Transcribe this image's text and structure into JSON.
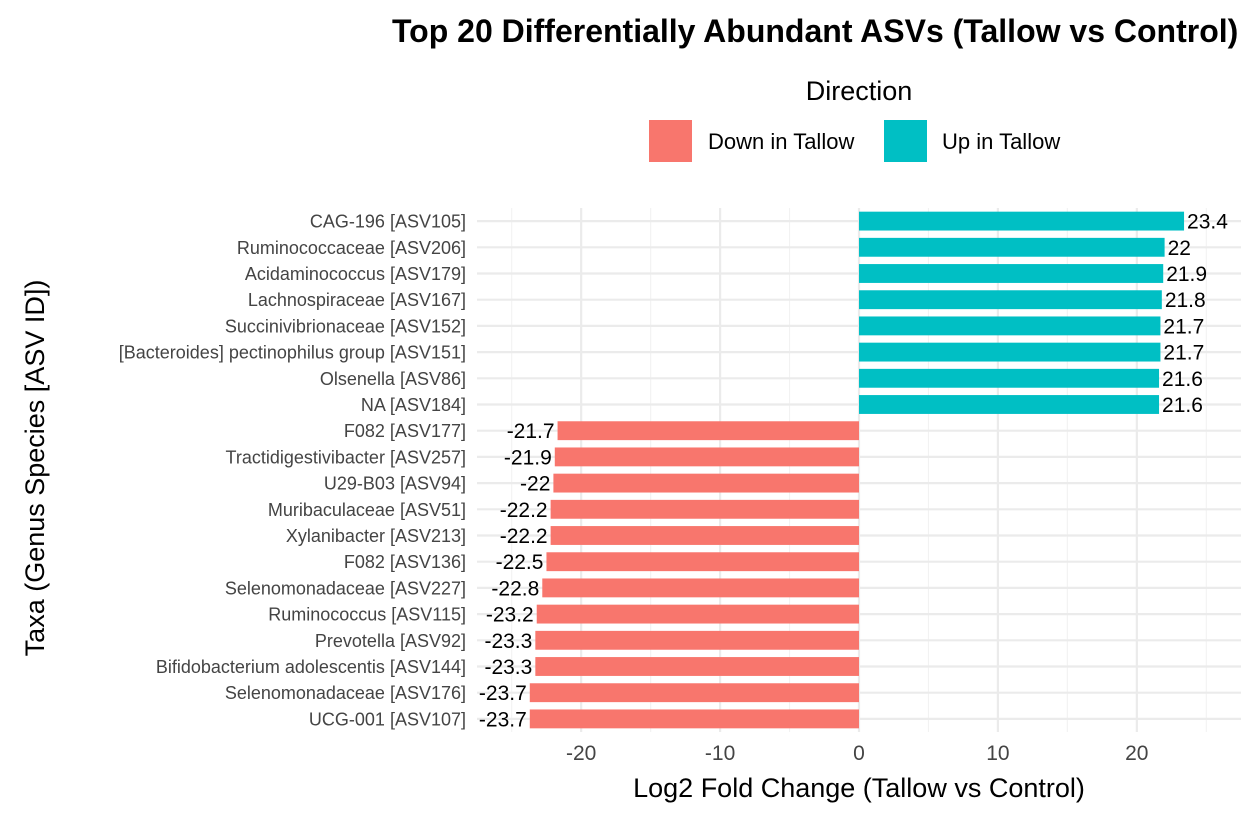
{
  "chart_data": {
    "type": "bar",
    "orientation": "horizontal",
    "title": "Top 20 Differentially Abundant ASVs (Tallow vs Control)",
    "xlabel": "Log2 Fold Change (Tallow vs Control)",
    "ylabel": "Taxa (Genus Species [ASV ID])",
    "xlim": [
      -27.5,
      27.5
    ],
    "x_ticks": [
      -20,
      -10,
      0,
      10,
      20
    ],
    "grid": true,
    "legend": {
      "title": "Direction",
      "position": "top",
      "entries": [
        {
          "label": "Down in Tallow",
          "color": "#F8766D"
        },
        {
          "label": "Up in Tallow",
          "color": "#00BFC4"
        }
      ]
    },
    "categories": [
      "CAG-196  [ASV105]",
      "Ruminococcaceae  [ASV206]",
      "Acidaminococcus  [ASV179]",
      "Lachnospiraceae  [ASV167]",
      "Succinivibrionaceae  [ASV152]",
      "[Bacteroides] pectinophilus group  [ASV151]",
      "Olsenella  [ASV86]",
      "NA  [ASV184]",
      "F082  [ASV177]",
      "Tractidigestivibacter  [ASV257]",
      "U29-B03  [ASV94]",
      "Muribaculaceae  [ASV51]",
      "Xylanibacter  [ASV213]",
      "F082  [ASV136]",
      "Selenomonadaceae  [ASV227]",
      "Ruminococcus  [ASV115]",
      "Prevotella  [ASV92]",
      "Bifidobacterium adolescentis [ASV144]",
      "Selenomonadaceae  [ASV176]",
      "UCG-001  [ASV107]"
    ],
    "values": [
      23.4,
      22.0,
      21.9,
      21.8,
      21.7,
      21.7,
      21.6,
      21.6,
      -21.7,
      -21.9,
      -22.0,
      -22.2,
      -22.2,
      -22.5,
      -22.8,
      -23.2,
      -23.3,
      -23.3,
      -23.7,
      -23.7
    ],
    "labels": [
      "23.4",
      "22",
      "21.9",
      "21.8",
      "21.7",
      "21.7",
      "21.6",
      "21.6",
      "-21.7",
      "-21.9",
      "-22",
      "-22.2",
      "-22.2",
      "-22.5",
      "-22.8",
      "-23.2",
      "-23.3",
      "-23.3",
      "-23.7",
      "-23.7"
    ],
    "colors": {
      "up": "#00BFC4",
      "down": "#F8766D"
    }
  }
}
